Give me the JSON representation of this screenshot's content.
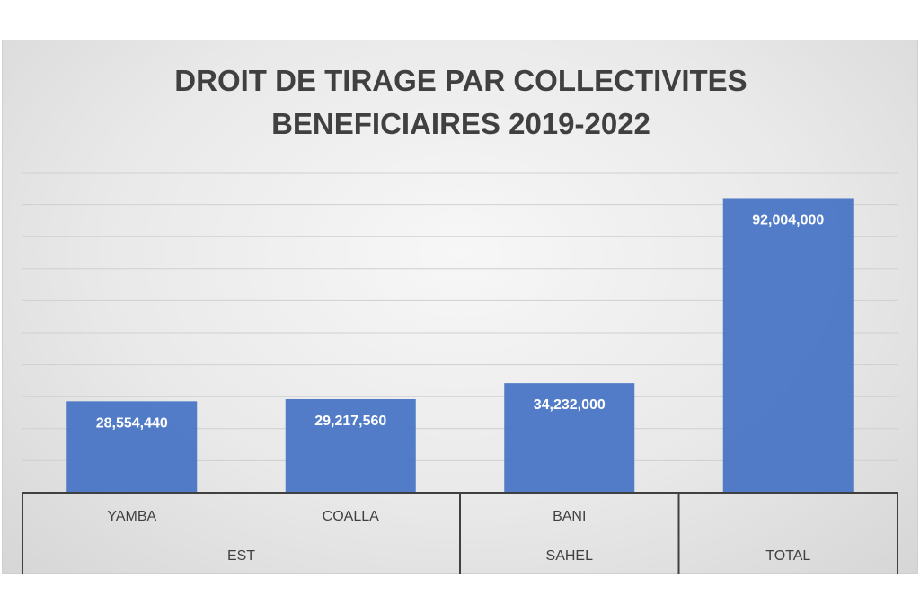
{
  "chart_data": {
    "type": "bar",
    "title_lines": [
      "DROIT DE TIRAGE PAR COLLECTIVITES",
      "BENEFICIAIRES 2019-2022"
    ],
    "categories": [
      "YAMBA",
      "COALLA",
      "BANI",
      ""
    ],
    "groups": [
      {
        "label": "EST",
        "categories": [
          "YAMBA",
          "COALLA"
        ]
      },
      {
        "label": "SAHEL",
        "categories": [
          "BANI"
        ]
      },
      {
        "label": "TOTAL",
        "categories": [
          ""
        ]
      }
    ],
    "values": [
      28554440,
      29217560,
      34232000,
      92004000
    ],
    "data_labels": [
      "28,554,440",
      "29,217,560",
      "34,232,000",
      "92,004,000"
    ],
    "ylim": [
      0,
      100000000
    ],
    "grid": true,
    "bar_color": "#4472c4"
  }
}
